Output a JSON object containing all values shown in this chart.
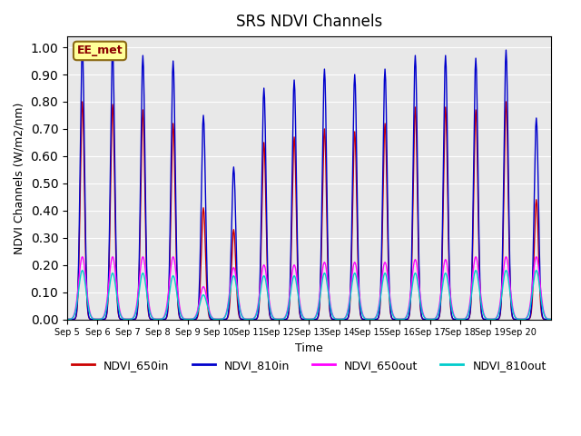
{
  "title": "SRS NDVI Channels",
  "xlabel": "Time",
  "ylabel": "NDVI Channels (W/m2/nm)",
  "ylim": [
    0.0,
    1.04
  ],
  "yticks": [
    0.0,
    0.1,
    0.2,
    0.3,
    0.4,
    0.5,
    0.6,
    0.7,
    0.8,
    0.9,
    1.0
  ],
  "xtick_labels": [
    "Sep 5",
    "Sep 6",
    "Sep 7",
    "Sep 8",
    "Sep 9",
    "Sep 10",
    "Sep 11",
    "Sep 12",
    "Sep 13",
    "Sep 14",
    "Sep 15",
    "Sep 16",
    "Sep 17",
    "Sep 18",
    "Sep 19",
    "Sep 20"
  ],
  "annotation": "EE_met",
  "colors": {
    "NDVI_650in": "#cc0000",
    "NDVI_810in": "#0000cc",
    "NDVI_650out": "#ff00ff",
    "NDVI_810out": "#00cccc"
  },
  "legend_labels": [
    "NDVI_650in",
    "NDVI_810in",
    "NDVI_650out",
    "NDVI_810out"
  ],
  "background_color": "#e8e8e8",
  "n_days": 16,
  "samples_per_day": 48,
  "peak_810in": [
    1.0,
    0.99,
    0.97,
    0.95,
    0.75,
    0.56,
    0.85,
    0.88,
    0.92,
    0.9,
    0.92,
    0.97,
    0.97,
    0.96,
    0.99,
    0.74
  ],
  "peak_650in": [
    0.8,
    0.79,
    0.77,
    0.72,
    0.41,
    0.33,
    0.65,
    0.67,
    0.7,
    0.69,
    0.72,
    0.78,
    0.78,
    0.77,
    0.8,
    0.44
  ],
  "peak_650out": [
    0.23,
    0.23,
    0.23,
    0.23,
    0.12,
    0.19,
    0.2,
    0.2,
    0.21,
    0.21,
    0.21,
    0.22,
    0.22,
    0.23,
    0.23,
    0.23
  ],
  "peak_810out": [
    0.18,
    0.17,
    0.17,
    0.16,
    0.09,
    0.16,
    0.16,
    0.16,
    0.17,
    0.17,
    0.17,
    0.17,
    0.17,
    0.18,
    0.18,
    0.18
  ]
}
